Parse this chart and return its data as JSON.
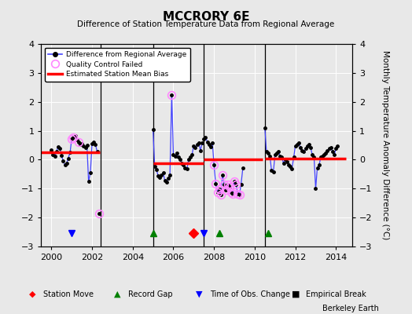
{
  "title": "MCCRORY 6E",
  "subtitle": "Difference of Station Temperature Data from Regional Average",
  "ylabel": "Monthly Temperature Anomaly Difference (°C)",
  "ylim": [
    -3,
    4
  ],
  "xlim": [
    1999.5,
    2014.8
  ],
  "xticks": [
    2000,
    2002,
    2004,
    2006,
    2008,
    2010,
    2012,
    2014
  ],
  "yticks": [
    -3,
    -2,
    -1,
    0,
    1,
    2,
    3,
    4
  ],
  "fig_bg": "#e8e8e8",
  "plot_bg": "#e8e8e8",
  "credit": "Berkeley Earth",
  "segments": [
    {
      "x_start": 1999.5,
      "x_end": 2002.4,
      "bias": 0.25,
      "data_x": [
        2000.0,
        2000.08,
        2000.17,
        2000.25,
        2000.33,
        2000.42,
        2000.5,
        2000.58,
        2000.67,
        2000.75,
        2000.83,
        2000.92,
        2001.0,
        2001.08,
        2001.17,
        2001.25,
        2001.33,
        2001.42,
        2001.5,
        2001.58,
        2001.67,
        2001.75,
        2001.83,
        2001.92,
        2002.0,
        2002.08,
        2002.17,
        2002.25
      ],
      "data_y": [
        0.35,
        0.18,
        0.12,
        0.28,
        0.45,
        0.38,
        0.15,
        -0.05,
        -0.18,
        -0.12,
        0.05,
        0.25,
        0.72,
        0.78,
        0.82,
        0.68,
        0.62,
        0.52,
        0.55,
        0.48,
        0.42,
        0.5,
        -0.75,
        -0.45,
        0.55,
        0.6,
        0.52,
        0.28
      ],
      "qc_failed_idx": [
        12,
        13,
        16
      ]
    },
    {
      "x_start": null,
      "x_end": null,
      "bias": null,
      "data_x": [
        2002.33
      ],
      "data_y": [
        -1.85
      ],
      "qc_failed_idx": [
        0
      ]
    },
    {
      "x_start": 2005.0,
      "x_end": 2007.5,
      "bias": -0.12,
      "data_x": [
        2005.0,
        2005.08,
        2005.17,
        2005.25,
        2005.33,
        2005.42,
        2005.5,
        2005.58,
        2005.67,
        2005.75,
        2005.83,
        2005.92,
        2006.0,
        2006.08,
        2006.17,
        2006.25,
        2006.33,
        2006.42,
        2006.5,
        2006.58,
        2006.67,
        2006.75,
        2006.83,
        2006.92,
        2007.0,
        2007.08,
        2007.17,
        2007.25,
        2007.33,
        2007.42
      ],
      "data_y": [
        1.05,
        -0.22,
        -0.35,
        -0.55,
        -0.62,
        -0.52,
        -0.45,
        -0.72,
        -0.78,
        -0.65,
        -0.52,
        2.25,
        0.18,
        0.12,
        0.22,
        0.08,
        0.02,
        -0.12,
        -0.18,
        -0.28,
        -0.32,
        0.02,
        0.08,
        0.18,
        0.48,
        0.42,
        0.52,
        0.58,
        0.32,
        0.58
      ],
      "qc_failed_idx": [
        11
      ]
    },
    {
      "x_start": 2007.5,
      "x_end": 2010.4,
      "bias": 0.0,
      "data_x": [
        2007.5,
        2007.58,
        2007.67,
        2007.75,
        2007.83,
        2007.92,
        2008.0,
        2008.08,
        2008.17,
        2008.25,
        2008.33,
        2008.42,
        2008.5,
        2008.58,
        2008.67,
        2008.75,
        2008.83,
        2008.92,
        2009.0,
        2009.08,
        2009.17,
        2009.25,
        2009.33,
        2009.42
      ],
      "data_y": [
        0.72,
        0.78,
        0.62,
        0.52,
        0.45,
        0.58,
        -0.18,
        -0.82,
        -1.12,
        -1.02,
        -1.22,
        -0.52,
        -0.85,
        -1.05,
        -0.85,
        -0.95,
        -1.12,
        -1.18,
        -0.75,
        -0.85,
        -1.18,
        -1.22,
        -0.85,
        -0.28
      ],
      "qc_failed_idx": [
        6,
        7,
        8,
        9,
        10,
        11,
        12,
        13,
        14,
        15,
        16,
        17,
        18,
        19,
        20,
        21
      ]
    },
    {
      "x_start": 2010.5,
      "x_end": 2014.5,
      "bias": 0.05,
      "data_x": [
        2010.5,
        2010.58,
        2010.67,
        2010.75,
        2010.83,
        2010.92,
        2011.0,
        2011.08,
        2011.17,
        2011.25,
        2011.33,
        2011.42,
        2011.5,
        2011.58,
        2011.67,
        2011.75,
        2011.83,
        2011.92,
        2012.0,
        2012.08,
        2012.17,
        2012.25,
        2012.33,
        2012.42,
        2012.5,
        2012.58,
        2012.67,
        2012.75,
        2012.83,
        2012.92,
        2013.0,
        2013.08,
        2013.17,
        2013.25,
        2013.33,
        2013.42,
        2013.5,
        2013.58,
        2013.67,
        2013.75,
        2013.83,
        2013.92,
        2014.0,
        2014.08
      ],
      "data_y": [
        1.1,
        0.28,
        0.22,
        0.12,
        -0.38,
        -0.42,
        0.18,
        0.22,
        0.28,
        0.12,
        0.08,
        -0.12,
        0.02,
        -0.08,
        -0.18,
        -0.22,
        -0.32,
        0.08,
        0.48,
        0.52,
        0.58,
        0.42,
        0.32,
        0.28,
        0.38,
        0.48,
        0.52,
        0.42,
        0.18,
        0.08,
        -1.0,
        -0.28,
        -0.18,
        0.08,
        0.12,
        0.18,
        0.22,
        0.32,
        0.38,
        0.42,
        0.28,
        0.18,
        0.38,
        0.48
      ],
      "qc_failed_idx": []
    }
  ],
  "vert_lines": [
    2002.42,
    2005.0,
    2007.5,
    2010.5
  ],
  "station_moves": [
    2007.0
  ],
  "record_gaps": [
    2005.0,
    2008.25,
    2010.67
  ],
  "obs_changes": [
    2001.0,
    2007.5
  ],
  "empirical_breaks": [],
  "line_color": "#4444ff",
  "marker_color": "#000000",
  "bias_color": "#ff0000",
  "qc_color": "#ff88ff"
}
